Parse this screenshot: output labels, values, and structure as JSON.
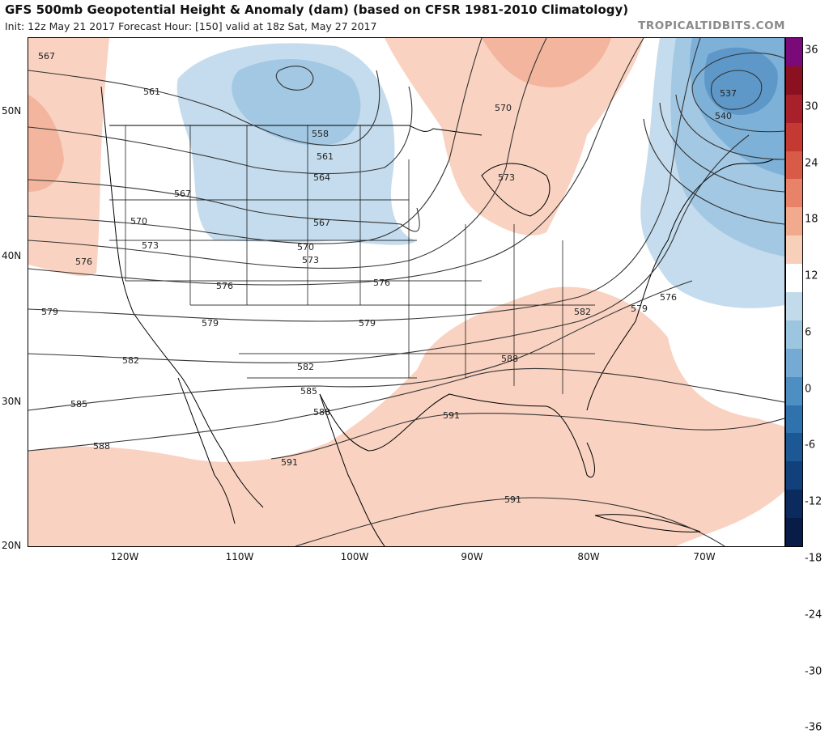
{
  "header": {
    "title": "GFS 500mb Geopotential Height & Anomaly (dam) (based on CFSR 1981-2010 Climatology)",
    "subtitle": "Init: 12z May 21 2017   Forecast Hour: [150]   valid at 18z Sat, May 27 2017",
    "credit": "TROPICALTIDBITS.COM"
  },
  "axes": {
    "lat_labels": [
      "50N",
      "40N",
      "30N",
      "20N"
    ],
    "lon_labels": [
      "120W",
      "110W",
      "100W",
      "90W",
      "80W",
      "70W"
    ]
  },
  "colorbar": {
    "labels": [
      "36",
      "30",
      "24",
      "18",
      "12",
      "6",
      "0",
      "-6",
      "-12",
      "-18",
      "-24",
      "-30",
      "-36"
    ],
    "colors": [
      "#7a0a7a",
      "#8b1020",
      "#a8202a",
      "#c43a32",
      "#d85b48",
      "#e8836a",
      "#f2aa8e",
      "#f8cfb9",
      "#ffffff",
      "#c2dbeb",
      "#9cc5e0",
      "#74aad3",
      "#4e8fc3",
      "#2f72ae",
      "#1c5894",
      "#12407a",
      "#0b2a5e",
      "#081c48"
    ]
  },
  "contour_labels": [
    "567",
    "561",
    "558",
    "561",
    "564",
    "567",
    "570",
    "567",
    "573",
    "570",
    "573",
    "576",
    "576",
    "576",
    "579",
    "579",
    "579",
    "582",
    "582",
    "582",
    "579",
    "576",
    "585",
    "585",
    "588",
    "588",
    "588",
    "591",
    "591",
    "591",
    "570",
    "573",
    "537",
    "540"
  ],
  "map": {
    "anomaly_colors": {
      "pos_light": "#f9d2c1",
      "pos_med": "#f3b59e",
      "pos_strong": "#ea9275",
      "neg_light": "#c4dced",
      "neg_med": "#a3c8e3",
      "neg_strong": "#7eb1d8",
      "neg_deep": "#5d98c9"
    }
  }
}
